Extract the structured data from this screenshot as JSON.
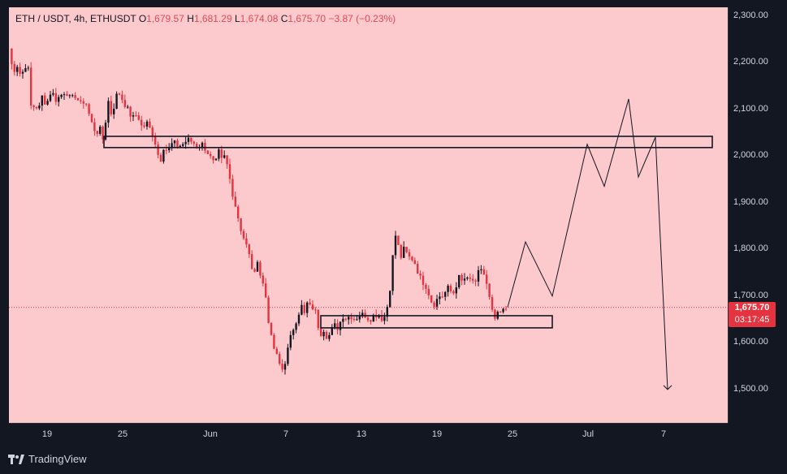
{
  "header": {
    "symbol": "ETH / USDT, 4h, ETHUSDT",
    "o_label": "O",
    "o_value": "1,679.57",
    "h_label": "H",
    "h_value": "1,681.29",
    "l_label": "L",
    "l_value": "1,674.08",
    "c_label": "C",
    "c_value": "1,675.70",
    "change": "−3.87 (−0.23%)"
  },
  "colors": {
    "background": "#fcc9cd",
    "bull": "#131722",
    "bear": "#e5333f",
    "price_tag": "#e5333f",
    "panel": "#131722"
  },
  "footer": {
    "brand": "TradingView",
    "icon": "tradingview-logo-icon"
  },
  "current_price": {
    "value": "1,675.70",
    "countdown": "03:17:45"
  },
  "chart_data": {
    "type": "candlestick",
    "title": "ETH / USDT, 4h, ETHUSDT",
    "y_ticks": [
      "2,300.00",
      "2,200.00",
      "2,100.00",
      "2,000.00",
      "1,900.00",
      "1,800.00",
      "1,700.00",
      "1,600.00",
      "1,500.00"
    ],
    "x_ticks": [
      "19",
      "25",
      "Jun",
      "7",
      "13",
      "19",
      "25",
      "Jul",
      "7"
    ],
    "ylim": [
      1430,
      2320
    ],
    "grid": false,
    "ohlc_path": [
      [
        0,
        2230
      ],
      [
        5,
        2180
      ],
      [
        10,
        2195
      ],
      [
        15,
        2170
      ],
      [
        20,
        2195
      ],
      [
        25,
        2180
      ],
      [
        28,
        2080
      ],
      [
        32,
        2120
      ],
      [
        36,
        2090
      ],
      [
        40,
        2130
      ],
      [
        46,
        2110
      ],
      [
        52,
        2140
      ],
      [
        58,
        2120
      ],
      [
        64,
        2130
      ],
      [
        70,
        2140
      ],
      [
        76,
        2120
      ],
      [
        82,
        2130
      ],
      [
        88,
        2110
      ],
      [
        94,
        2120
      ],
      [
        100,
        2080
      ],
      [
        104,
        2060
      ],
      [
        108,
        2050
      ],
      [
        112,
        2060
      ],
      [
        114,
        2020
      ],
      [
        116,
        2040
      ],
      [
        118,
        2060
      ],
      [
        122,
        2120
      ],
      [
        126,
        2090
      ],
      [
        130,
        2110
      ],
      [
        134,
        2140
      ],
      [
        140,
        2120
      ],
      [
        146,
        2100
      ],
      [
        152,
        2080
      ],
      [
        158,
        2090
      ],
      [
        164,
        2060
      ],
      [
        170,
        2070
      ],
      [
        176,
        2050
      ],
      [
        180,
        2030
      ],
      [
        184,
        2000
      ],
      [
        186,
        1985
      ],
      [
        190,
        2020
      ],
      [
        196,
        2010
      ],
      [
        202,
        2030
      ],
      [
        208,
        2020
      ],
      [
        214,
        2025
      ],
      [
        220,
        2035
      ],
      [
        226,
        2030
      ],
      [
        232,
        2020
      ],
      [
        238,
        2025
      ],
      [
        244,
        2010
      ],
      [
        250,
        1990
      ],
      [
        254,
        1980
      ],
      [
        258,
        2010
      ],
      [
        262,
        1990
      ],
      [
        266,
        2000
      ],
      [
        270,
        1970
      ],
      [
        274,
        1930
      ],
      [
        278,
        1900
      ],
      [
        282,
        1870
      ],
      [
        286,
        1840
      ],
      [
        290,
        1820
      ],
      [
        294,
        1800
      ],
      [
        298,
        1770
      ],
      [
        302,
        1740
      ],
      [
        306,
        1780
      ],
      [
        310,
        1740
      ],
      [
        314,
        1720
      ],
      [
        318,
        1680
      ],
      [
        320,
        1640
      ],
      [
        324,
        1600
      ],
      [
        328,
        1580
      ],
      [
        332,
        1560
      ],
      [
        336,
        1540
      ],
      [
        340,
        1560
      ],
      [
        344,
        1590
      ],
      [
        348,
        1620
      ],
      [
        352,
        1640
      ],
      [
        356,
        1660
      ],
      [
        360,
        1680
      ],
      [
        364,
        1660
      ],
      [
        368,
        1690
      ],
      [
        372,
        1670
      ],
      [
        376,
        1680
      ],
      [
        380,
        1640
      ],
      [
        384,
        1620
      ],
      [
        388,
        1630
      ],
      [
        392,
        1610
      ],
      [
        396,
        1620
      ],
      [
        400,
        1640
      ],
      [
        404,
        1630
      ],
      [
        408,
        1645
      ],
      [
        412,
        1660
      ],
      [
        416,
        1650
      ],
      [
        420,
        1660
      ],
      [
        426,
        1650
      ],
      [
        432,
        1660
      ],
      [
        438,
        1660
      ],
      [
        444,
        1650
      ],
      [
        450,
        1660
      ],
      [
        456,
        1660
      ],
      [
        460,
        1650
      ],
      [
        464,
        1660
      ],
      [
        468,
        1700
      ],
      [
        472,
        1760
      ],
      [
        474,
        1840
      ],
      [
        478,
        1820
      ],
      [
        482,
        1780
      ],
      [
        486,
        1800
      ],
      [
        490,
        1790
      ],
      [
        494,
        1780
      ],
      [
        498,
        1780
      ],
      [
        502,
        1760
      ],
      [
        506,
        1740
      ],
      [
        510,
        1730
      ],
      [
        514,
        1720
      ],
      [
        518,
        1700
      ],
      [
        522,
        1680
      ],
      [
        526,
        1690
      ],
      [
        530,
        1700
      ],
      [
        534,
        1700
      ],
      [
        538,
        1710
      ],
      [
        542,
        1720
      ],
      [
        546,
        1700
      ],
      [
        550,
        1720
      ],
      [
        554,
        1740
      ],
      [
        558,
        1730
      ],
      [
        562,
        1740
      ],
      [
        566,
        1730
      ],
      [
        570,
        1740
      ],
      [
        574,
        1720
      ],
      [
        578,
        1750
      ],
      [
        582,
        1760
      ],
      [
        586,
        1740
      ],
      [
        590,
        1710
      ],
      [
        594,
        1670
      ],
      [
        598,
        1650
      ],
      [
        602,
        1660
      ],
      [
        606,
        1665
      ],
      [
        610,
        1670
      ],
      [
        614,
        1676
      ]
    ],
    "zones": [
      {
        "label": "resistance-zone",
        "y_top": 2042,
        "y_bottom": 2018,
        "x_start": 117,
        "x_end": 866
      },
      {
        "label": "support-zone",
        "y_top": 1658,
        "y_bottom": 1632,
        "x_start": 384,
        "x_end": 669
      }
    ],
    "projection": [
      [
        614,
        1676
      ],
      [
        636,
        1816
      ],
      [
        669,
        1700
      ],
      [
        712,
        2025
      ],
      [
        733,
        1935
      ],
      [
        763,
        2122
      ],
      [
        775,
        1955
      ],
      [
        796,
        2040
      ],
      [
        811,
        1500
      ]
    ]
  }
}
